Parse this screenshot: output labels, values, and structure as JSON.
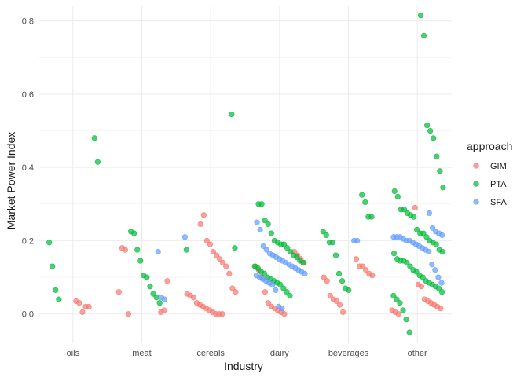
{
  "chart_data": {
    "type": "scatter",
    "xlabel": "Industry",
    "ylabel": "Market Power Index",
    "categories": [
      "oils",
      "meat",
      "cereals",
      "dairy",
      "beverages",
      "other"
    ],
    "y_ticks": [
      "0.0",
      "0.2",
      "0.4",
      "0.6",
      "0.8"
    ],
    "ylim": [
      -0.08,
      0.84
    ],
    "grid": true,
    "legend": {
      "title": "approach",
      "position": "right"
    },
    "series": [
      {
        "name": "GIM",
        "color": "#F8766D",
        "points": [
          [
            "oils",
            0.035
          ],
          [
            "oils",
            0.03
          ],
          [
            "oils",
            0.005
          ],
          [
            "oils",
            0.02
          ],
          [
            "oils",
            0.02
          ],
          [
            "meat",
            0.005
          ],
          [
            "meat",
            0.01
          ],
          [
            "meat",
            0.09
          ],
          [
            "meat",
            0.06
          ],
          [
            "meat",
            0.18
          ],
          [
            "meat",
            0.175
          ],
          [
            "meat",
            0.0
          ],
          [
            "cereals",
            0.245
          ],
          [
            "cereals",
            0.27
          ],
          [
            "cereals",
            0.2
          ],
          [
            "cereals",
            0.19
          ],
          [
            "cereals",
            0.17
          ],
          [
            "cereals",
            0.16
          ],
          [
            "cereals",
            0.15
          ],
          [
            "cereals",
            0.14
          ],
          [
            "cereals",
            0.13
          ],
          [
            "cereals",
            0.11
          ],
          [
            "cereals",
            0.07
          ],
          [
            "cereals",
            0.06
          ],
          [
            "cereals",
            0.055
          ],
          [
            "cereals",
            0.05
          ],
          [
            "cereals",
            0.045
          ],
          [
            "cereals",
            0.03
          ],
          [
            "cereals",
            0.025
          ],
          [
            "cereals",
            0.02
          ],
          [
            "cereals",
            0.015
          ],
          [
            "cereals",
            0.01
          ],
          [
            "cereals",
            0.005
          ],
          [
            "cereals",
            0.0
          ],
          [
            "cereals",
            0.0
          ],
          [
            "cereals",
            0.0
          ],
          [
            "dairy",
            0.17
          ],
          [
            "dairy",
            0.16
          ],
          [
            "dairy",
            0.15
          ],
          [
            "dairy",
            0.14
          ],
          [
            "dairy",
            0.13
          ],
          [
            "dairy",
            0.12
          ],
          [
            "dairy",
            0.1
          ],
          [
            "dairy",
            0.06
          ],
          [
            "dairy",
            0.03
          ],
          [
            "dairy",
            0.02
          ],
          [
            "dairy",
            0.015
          ],
          [
            "dairy",
            0.01
          ],
          [
            "dairy",
            0.005
          ],
          [
            "dairy",
            0.0
          ],
          [
            "beverages",
            0.15
          ],
          [
            "beverages",
            0.13
          ],
          [
            "beverages",
            0.13
          ],
          [
            "beverages",
            0.12
          ],
          [
            "beverages",
            0.11
          ],
          [
            "beverages",
            0.105
          ],
          [
            "beverages",
            0.1
          ],
          [
            "beverages",
            0.09
          ],
          [
            "beverages",
            0.05
          ],
          [
            "beverages",
            0.04
          ],
          [
            "beverages",
            0.035
          ],
          [
            "beverages",
            0.025
          ],
          [
            "beverages",
            0.005
          ],
          [
            "other",
            0.29
          ],
          [
            "other",
            0.08
          ],
          [
            "other",
            0.075
          ],
          [
            "other",
            0.04
          ],
          [
            "other",
            0.035
          ],
          [
            "other",
            0.03
          ],
          [
            "other",
            0.025
          ],
          [
            "other",
            0.02
          ],
          [
            "other",
            0.015
          ],
          [
            "other",
            0.01
          ],
          [
            "other",
            0.005
          ],
          [
            "other",
            0.0
          ]
        ]
      },
      {
        "name": "PTA",
        "color": "#00BA38",
        "points": [
          [
            "oils",
            0.48
          ],
          [
            "oils",
            0.415
          ],
          [
            "oils",
            0.195
          ],
          [
            "oils",
            0.13
          ],
          [
            "oils",
            0.065
          ],
          [
            "oils",
            0.04
          ],
          [
            "meat",
            0.225
          ],
          [
            "meat",
            0.22
          ],
          [
            "meat",
            0.175
          ],
          [
            "meat",
            0.145
          ],
          [
            "meat",
            0.105
          ],
          [
            "meat",
            0.1
          ],
          [
            "meat",
            0.075
          ],
          [
            "meat",
            0.055
          ],
          [
            "meat",
            0.045
          ],
          [
            "meat",
            0.03
          ],
          [
            "cereals",
            0.545
          ],
          [
            "cereals",
            0.18
          ],
          [
            "cereals",
            0.175
          ],
          [
            "dairy",
            0.3
          ],
          [
            "dairy",
            0.3
          ],
          [
            "dairy",
            0.255
          ],
          [
            "dairy",
            0.245
          ],
          [
            "dairy",
            0.22
          ],
          [
            "dairy",
            0.2
          ],
          [
            "dairy",
            0.195
          ],
          [
            "dairy",
            0.19
          ],
          [
            "dairy",
            0.19
          ],
          [
            "dairy",
            0.18
          ],
          [
            "dairy",
            0.17
          ],
          [
            "dairy",
            0.16
          ],
          [
            "dairy",
            0.155
          ],
          [
            "dairy",
            0.145
          ],
          [
            "dairy",
            0.14
          ],
          [
            "dairy",
            0.13
          ],
          [
            "dairy",
            0.125
          ],
          [
            "dairy",
            0.115
          ],
          [
            "dairy",
            0.11
          ],
          [
            "dairy",
            0.1
          ],
          [
            "dairy",
            0.095
          ],
          [
            "dairy",
            0.09
          ],
          [
            "dairy",
            0.085
          ],
          [
            "dairy",
            0.08
          ],
          [
            "dairy",
            0.07
          ],
          [
            "dairy",
            0.06
          ],
          [
            "dairy",
            0.05
          ],
          [
            "beverages",
            0.325
          ],
          [
            "beverages",
            0.305
          ],
          [
            "beverages",
            0.265
          ],
          [
            "beverages",
            0.265
          ],
          [
            "beverages",
            0.225
          ],
          [
            "beverages",
            0.215
          ],
          [
            "beverages",
            0.195
          ],
          [
            "beverages",
            0.195
          ],
          [
            "beverages",
            0.16
          ],
          [
            "beverages",
            0.11
          ],
          [
            "beverages",
            0.09
          ],
          [
            "beverages",
            0.07
          ],
          [
            "beverages",
            0.065
          ],
          [
            "other",
            0.815
          ],
          [
            "other",
            0.76
          ],
          [
            "other",
            0.515
          ],
          [
            "other",
            0.5
          ],
          [
            "other",
            0.48
          ],
          [
            "other",
            0.43
          ],
          [
            "other",
            0.39
          ],
          [
            "other",
            0.345
          ],
          [
            "other",
            0.335
          ],
          [
            "other",
            0.32
          ],
          [
            "other",
            0.285
          ],
          [
            "other",
            0.285
          ],
          [
            "other",
            0.275
          ],
          [
            "other",
            0.27
          ],
          [
            "other",
            0.265
          ],
          [
            "other",
            0.23
          ],
          [
            "other",
            0.22
          ],
          [
            "other",
            0.22
          ],
          [
            "other",
            0.21
          ],
          [
            "other",
            0.2
          ],
          [
            "other",
            0.195
          ],
          [
            "other",
            0.19
          ],
          [
            "other",
            0.175
          ],
          [
            "other",
            0.17
          ],
          [
            "other",
            0.165
          ],
          [
            "other",
            0.15
          ],
          [
            "other",
            0.145
          ],
          [
            "other",
            0.145
          ],
          [
            "other",
            0.14
          ],
          [
            "other",
            0.13
          ],
          [
            "other",
            0.12
          ],
          [
            "other",
            0.115
          ],
          [
            "other",
            0.105
          ],
          [
            "other",
            0.1
          ],
          [
            "other",
            0.09
          ],
          [
            "other",
            0.085
          ],
          [
            "other",
            0.08
          ],
          [
            "other",
            0.075
          ],
          [
            "other",
            0.07
          ],
          [
            "other",
            0.06
          ],
          [
            "other",
            0.05
          ],
          [
            "other",
            0.04
          ],
          [
            "other",
            0.03
          ],
          [
            "other",
            0.01
          ],
          [
            "other",
            -0.015
          ],
          [
            "other",
            -0.05
          ]
        ]
      },
      {
        "name": "SFA",
        "color": "#619CFF",
        "points": [
          [
            "meat",
            0.17
          ],
          [
            "meat",
            0.045
          ],
          [
            "meat",
            0.04
          ],
          [
            "cereals",
            0.21
          ],
          [
            "dairy",
            0.25
          ],
          [
            "dairy",
            0.23
          ],
          [
            "dairy",
            0.185
          ],
          [
            "dairy",
            0.175
          ],
          [
            "dairy",
            0.165
          ],
          [
            "dairy",
            0.16
          ],
          [
            "dairy",
            0.155
          ],
          [
            "dairy",
            0.15
          ],
          [
            "dairy",
            0.145
          ],
          [
            "dairy",
            0.14
          ],
          [
            "dairy",
            0.135
          ],
          [
            "dairy",
            0.13
          ],
          [
            "dairy",
            0.125
          ],
          [
            "dairy",
            0.12
          ],
          [
            "dairy",
            0.115
          ],
          [
            "dairy",
            0.11
          ],
          [
            "dairy",
            0.105
          ],
          [
            "dairy",
            0.1
          ],
          [
            "dairy",
            0.095
          ],
          [
            "dairy",
            0.09
          ],
          [
            "dairy",
            0.085
          ],
          [
            "dairy",
            0.08
          ],
          [
            "dairy",
            0.065
          ],
          [
            "dairy",
            0.02
          ],
          [
            "dairy",
            0.015
          ],
          [
            "beverages",
            0.2
          ],
          [
            "beverages",
            0.2
          ],
          [
            "other",
            0.275
          ],
          [
            "other",
            0.235
          ],
          [
            "other",
            0.225
          ],
          [
            "other",
            0.22
          ],
          [
            "other",
            0.215
          ],
          [
            "other",
            0.21
          ],
          [
            "other",
            0.21
          ],
          [
            "other",
            0.21
          ],
          [
            "other",
            0.205
          ],
          [
            "other",
            0.2
          ],
          [
            "other",
            0.2
          ],
          [
            "other",
            0.195
          ],
          [
            "other",
            0.19
          ],
          [
            "other",
            0.185
          ],
          [
            "other",
            0.18
          ],
          [
            "other",
            0.175
          ],
          [
            "other",
            0.17
          ],
          [
            "other",
            0.135
          ],
          [
            "other",
            0.12
          ],
          [
            "other",
            0.1
          ],
          [
            "other",
            0.085
          ]
        ]
      }
    ]
  }
}
